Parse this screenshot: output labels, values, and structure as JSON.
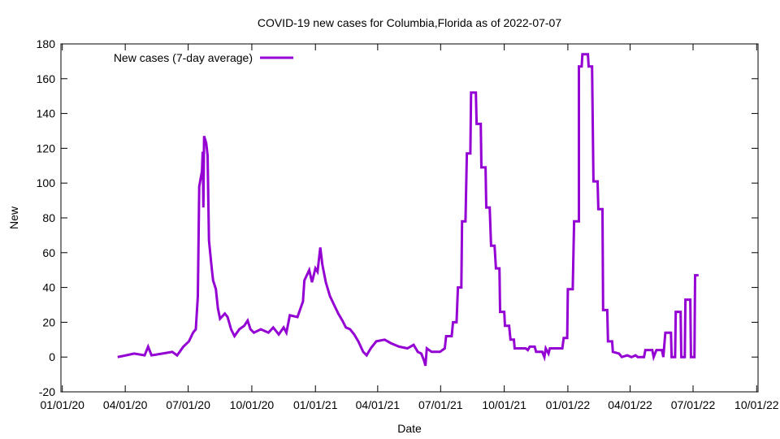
{
  "chart_data": {
    "type": "line",
    "title": "COVID-19 new cases for Columbia,Florida as of 2022-07-07",
    "xlabel": "Date",
    "ylabel": "New",
    "x_unit": "days since 2020-01-01",
    "xlim": [
      -2,
      1006
    ],
    "ylim": [
      -20,
      180
    ],
    "grid": false,
    "legend_position": "top-left",
    "x_ticks": [
      {
        "day": 0,
        "label": "01/01/20"
      },
      {
        "day": 91,
        "label": "04/01/20"
      },
      {
        "day": 182,
        "label": "07/01/20"
      },
      {
        "day": 274,
        "label": "10/01/20"
      },
      {
        "day": 366,
        "label": "01/01/21"
      },
      {
        "day": 456,
        "label": "04/01/21"
      },
      {
        "day": 547,
        "label": "07/01/21"
      },
      {
        "day": 639,
        "label": "10/01/21"
      },
      {
        "day": 731,
        "label": "01/01/22"
      },
      {
        "day": 821,
        "label": "04/01/22"
      },
      {
        "day": 912,
        "label": "07/01/22"
      },
      {
        "day": 1004,
        "label": "10/01/22"
      }
    ],
    "y_ticks": [
      {
        "value": -20,
        "label": "-20"
      },
      {
        "value": 0,
        "label": "0"
      },
      {
        "value": 20,
        "label": "20"
      },
      {
        "value": 40,
        "label": "40"
      },
      {
        "value": 60,
        "label": "60"
      },
      {
        "value": 80,
        "label": "80"
      },
      {
        "value": 100,
        "label": "100"
      },
      {
        "value": 120,
        "label": "120"
      },
      {
        "value": 140,
        "label": "140"
      },
      {
        "value": 160,
        "label": "160"
      },
      {
        "value": 180,
        "label": "180"
      }
    ],
    "series": [
      {
        "name": "New cases (7-day average)",
        "color": "#9400d3",
        "points": [
          [
            80,
            0
          ],
          [
            92,
            1
          ],
          [
            104,
            2
          ],
          [
            119,
            1
          ],
          [
            124,
            6
          ],
          [
            129,
            1
          ],
          [
            145,
            2
          ],
          [
            159,
            3
          ],
          [
            166,
            1
          ],
          [
            175,
            6
          ],
          [
            183,
            9
          ],
          [
            189,
            14
          ],
          [
            193,
            16
          ],
          [
            196,
            35
          ],
          [
            198,
            98
          ],
          [
            202,
            107
          ],
          [
            203,
            118
          ],
          [
            204,
            86
          ],
          [
            205,
            127
          ],
          [
            208,
            123
          ],
          [
            210,
            116
          ],
          [
            212,
            67
          ],
          [
            216,
            51
          ],
          [
            218,
            44
          ],
          [
            222,
            39
          ],
          [
            225,
            28
          ],
          [
            228,
            22
          ],
          [
            235,
            25
          ],
          [
            239,
            23
          ],
          [
            244,
            16
          ],
          [
            249,
            12
          ],
          [
            256,
            16
          ],
          [
            263,
            18
          ],
          [
            268,
            21
          ],
          [
            272,
            16
          ],
          [
            277,
            14
          ],
          [
            287,
            16
          ],
          [
            298,
            14
          ],
          [
            305,
            17
          ],
          [
            313,
            13
          ],
          [
            320,
            17
          ],
          [
            324,
            14
          ],
          [
            329,
            24
          ],
          [
            340,
            23
          ],
          [
            348,
            32
          ],
          [
            350,
            44
          ],
          [
            357,
            50
          ],
          [
            361,
            43
          ],
          [
            366,
            51
          ],
          [
            369,
            49
          ],
          [
            373,
            63
          ],
          [
            376,
            53
          ],
          [
            381,
            43
          ],
          [
            387,
            35
          ],
          [
            393,
            30
          ],
          [
            399,
            25
          ],
          [
            405,
            21
          ],
          [
            410,
            17
          ],
          [
            416,
            16
          ],
          [
            422,
            13
          ],
          [
            428,
            9
          ],
          [
            435,
            3
          ],
          [
            440,
            1
          ],
          [
            446,
            5
          ],
          [
            454,
            9
          ],
          [
            466,
            10
          ],
          [
            475,
            8
          ],
          [
            487,
            6
          ],
          [
            499,
            5
          ],
          [
            508,
            7
          ],
          [
            514,
            3
          ],
          [
            519,
            2
          ],
          [
            523,
            -2
          ],
          [
            525,
            -5
          ],
          [
            527,
            5
          ],
          [
            534,
            3
          ],
          [
            546,
            3
          ],
          [
            553,
            5
          ],
          [
            555,
            12
          ],
          [
            563,
            12
          ],
          [
            565,
            20
          ],
          [
            570,
            20
          ],
          [
            572,
            40
          ],
          [
            577,
            40
          ],
          [
            578,
            78
          ],
          [
            583,
            78
          ],
          [
            585,
            117
          ],
          [
            590,
            117
          ],
          [
            591,
            152
          ],
          [
            598,
            152
          ],
          [
            599,
            134
          ],
          [
            605,
            134
          ],
          [
            606,
            109
          ],
          [
            612,
            109
          ],
          [
            613,
            86
          ],
          [
            618,
            86
          ],
          [
            620,
            64
          ],
          [
            625,
            64
          ],
          [
            627,
            51
          ],
          [
            632,
            51
          ],
          [
            633,
            26
          ],
          [
            639,
            26
          ],
          [
            640,
            18
          ],
          [
            646,
            18
          ],
          [
            648,
            10
          ],
          [
            653,
            10
          ],
          [
            654,
            5
          ],
          [
            670,
            5
          ],
          [
            673,
            4
          ],
          [
            676,
            6
          ],
          [
            683,
            6
          ],
          [
            685,
            3
          ],
          [
            694,
            3
          ],
          [
            697,
            0
          ],
          [
            699,
            5
          ],
          [
            703,
            2
          ],
          [
            705,
            5
          ],
          [
            723,
            5
          ],
          [
            725,
            11
          ],
          [
            730,
            11
          ],
          [
            731,
            39
          ],
          [
            738,
            39
          ],
          [
            740,
            78
          ],
          [
            747,
            78
          ],
          [
            747,
            167
          ],
          [
            751,
            167
          ],
          [
            752,
            174
          ],
          [
            760,
            174
          ],
          [
            761,
            167
          ],
          [
            766,
            167
          ],
          [
            768,
            101
          ],
          [
            774,
            101
          ],
          [
            775,
            85
          ],
          [
            781,
            85
          ],
          [
            782,
            27
          ],
          [
            788,
            27
          ],
          [
            789,
            9
          ],
          [
            795,
            9
          ],
          [
            796,
            3
          ],
          [
            805,
            2
          ],
          [
            809,
            0
          ],
          [
            817,
            1
          ],
          [
            823,
            0
          ],
          [
            829,
            1
          ],
          [
            832,
            0
          ],
          [
            841,
            0
          ],
          [
            843,
            4
          ],
          [
            853,
            4
          ],
          [
            855,
            0
          ],
          [
            859,
            4
          ],
          [
            867,
            4
          ],
          [
            869,
            0
          ],
          [
            872,
            14
          ],
          [
            880,
            14
          ],
          [
            881,
            0
          ],
          [
            886,
            0
          ],
          [
            887,
            26
          ],
          [
            894,
            26
          ],
          [
            895,
            0
          ],
          [
            900,
            0
          ],
          [
            901,
            33
          ],
          [
            908,
            33
          ],
          [
            909,
            0
          ],
          [
            914,
            0
          ],
          [
            915,
            47
          ],
          [
            920,
            47
          ]
        ]
      }
    ]
  }
}
